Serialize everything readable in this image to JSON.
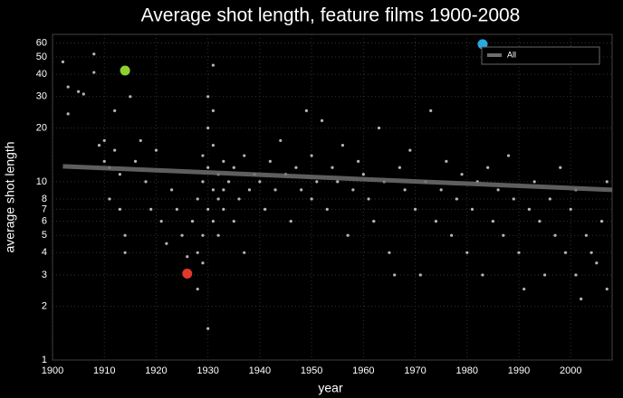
{
  "chart_data": {
    "type": "scatter",
    "title": "Average shot length, feature films 1900-2008",
    "x_label": "year",
    "y_label": "average shot length",
    "log_y": true,
    "grid": true,
    "legend": "top-right",
    "xlim": [
      1900,
      2008
    ],
    "ylim": [
      1,
      67
    ],
    "xticks": [
      1900,
      1910,
      1920,
      1930,
      1940,
      1950,
      1960,
      1970,
      1980,
      1990,
      2000
    ],
    "yticks": [
      1,
      2,
      3,
      4,
      5,
      6,
      7,
      8,
      10,
      20,
      30,
      40,
      50,
      60
    ],
    "series": [
      {
        "name": "All",
        "color": "#6e6e6e",
        "x": [
          1902,
          2008
        ],
        "values": [
          12.2,
          9
        ]
      }
    ],
    "points": {
      "color": "#b5b5b5",
      "x": [
        1902,
        1903,
        1903,
        1905,
        1906,
        1908,
        1908,
        1909,
        1910,
        1910,
        1911,
        1911,
        1912,
        1912,
        1913,
        1913,
        1914,
        1914,
        1915,
        1916,
        1917,
        1918,
        1919,
        1920,
        1921,
        1922,
        1923,
        1924,
        1925,
        1926,
        1927,
        1928,
        1928,
        1928,
        1929,
        1929,
        1929,
        1929,
        1930,
        1930,
        1930,
        1930,
        1930,
        1931,
        1931,
        1931,
        1931,
        1931,
        1932,
        1932,
        1932,
        1933,
        1933,
        1933,
        1934,
        1935,
        1935,
        1936,
        1937,
        1937,
        1938,
        1939,
        1940,
        1941,
        1942,
        1943,
        1944,
        1945,
        1946,
        1947,
        1948,
        1949,
        1950,
        1950,
        1951,
        1952,
        1953,
        1954,
        1955,
        1956,
        1957,
        1958,
        1959,
        1960,
        1961,
        1962,
        1963,
        1964,
        1965,
        1966,
        1967,
        1968,
        1969,
        1970,
        1971,
        1972,
        1973,
        1974,
        1975,
        1976,
        1977,
        1978,
        1979,
        1980,
        1981,
        1982,
        1983,
        1984,
        1985,
        1986,
        1987,
        1988,
        1989,
        1990,
        1991,
        1992,
        1993,
        1994,
        1995,
        1996,
        1997,
        1998,
        1999,
        2000,
        2001,
        2001,
        2002,
        2003,
        2004,
        2005,
        2006,
        2007,
        2007
      ],
      "values": [
        47,
        34,
        24,
        32,
        31,
        52,
        41,
        16,
        17,
        13,
        12,
        8,
        25,
        15,
        11,
        7,
        5,
        4,
        30,
        13,
        17,
        10,
        7,
        15,
        6,
        4.5,
        9,
        7,
        5,
        3.8,
        6,
        4,
        8,
        2.5,
        5,
        10,
        14,
        3.5,
        7,
        12,
        20,
        30,
        1.5,
        9,
        6,
        16,
        45,
        25,
        11,
        8,
        5,
        13,
        9,
        7,
        10,
        12,
        6,
        8,
        14,
        4,
        9,
        11,
        10,
        7,
        13,
        9,
        17,
        11,
        6,
        12,
        9,
        25,
        14,
        8,
        10,
        22,
        7,
        12,
        10,
        16,
        5,
        9,
        13,
        11,
        8,
        6,
        20,
        10,
        4,
        3,
        12,
        9,
        15,
        7,
        3,
        10,
        25,
        6,
        9,
        13,
        5,
        8,
        11,
        4,
        7,
        10,
        3,
        12,
        6,
        9,
        5,
        14,
        8,
        4,
        2.5,
        7,
        10,
        6,
        3,
        8,
        5,
        12,
        4,
        7,
        3,
        9,
        2.2,
        5,
        4,
        3.5,
        6,
        2.5,
        10
      ]
    },
    "highlights": {
      "x": [
        1914,
        1926,
        1983
      ],
      "values": [
        42,
        3.05,
        59
      ],
      "colors": [
        "#8fd12a",
        "#e0392b",
        "#29a9e0"
      ]
    }
  }
}
